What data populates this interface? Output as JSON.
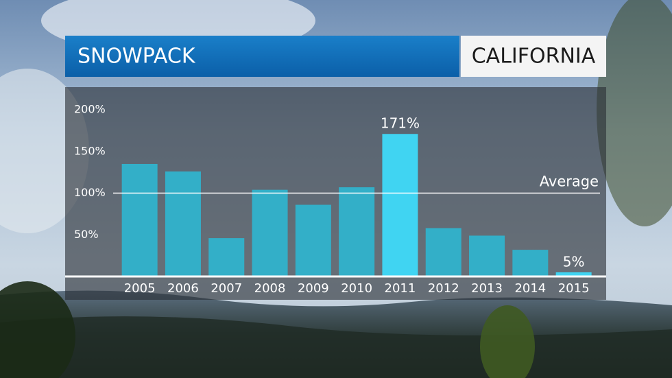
{
  "chart_data": {
    "type": "bar",
    "title": "SNOWPACK",
    "subtitle": "CALIFORNIA",
    "categories": [
      "2005",
      "2006",
      "2007",
      "2008",
      "2009",
      "2010",
      "2011",
      "2012",
      "2013",
      "2014",
      "2015"
    ],
    "values": [
      135,
      126,
      46,
      104,
      86,
      107,
      171,
      58,
      49,
      32,
      5
    ],
    "value_labels": [
      null,
      null,
      null,
      null,
      null,
      null,
      "171%",
      null,
      null,
      null,
      "5%"
    ],
    "colors": [
      "#33afc8",
      "#33afc8",
      "#33afc8",
      "#33afc8",
      "#33afc8",
      "#33afc8",
      "#40d4f2",
      "#33afc8",
      "#33afc8",
      "#33afc8",
      "#40d4f2"
    ],
    "ylim": [
      0,
      200
    ],
    "yticks": [
      {
        "value": 50,
        "label": "50%"
      },
      {
        "value": 100,
        "label": "100%"
      },
      {
        "value": 150,
        "label": "150%"
      },
      {
        "value": 200,
        "label": "200%"
      }
    ],
    "average": {
      "value": 100,
      "label": "Average"
    }
  }
}
